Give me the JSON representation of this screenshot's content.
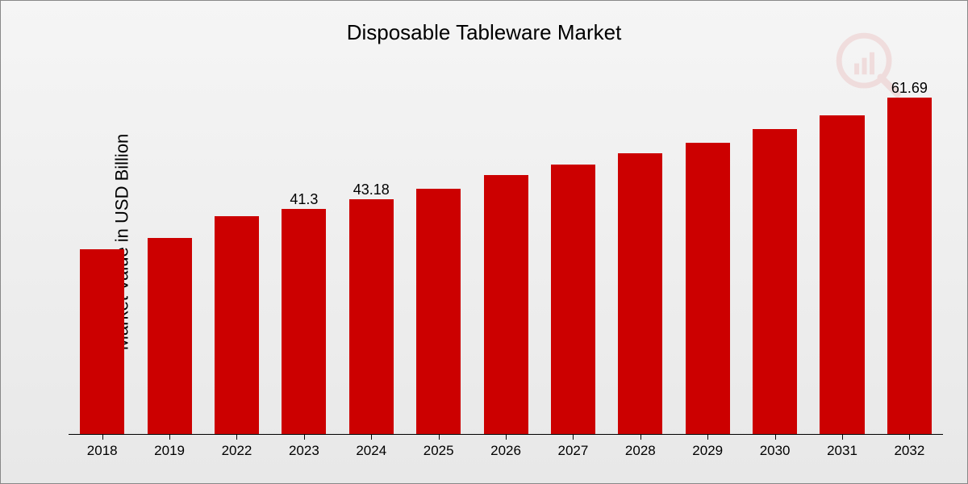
{
  "chart": {
    "type": "bar",
    "title": "Disposable Tableware Market",
    "title_fontsize": 26,
    "ylabel": "Market Value in USD Billion",
    "ylabel_fontsize": 22,
    "background_gradient_top": "#f5f5f5",
    "background_gradient_bottom": "#e8e8e8",
    "border_color": "#888888",
    "bar_color": "#cc0000",
    "axis_color": "#000000",
    "text_color": "#000000",
    "bar_width_ratio": 0.66,
    "ylim": [
      0,
      65
    ],
    "categories": [
      "2018",
      "2019",
      "2022",
      "2023",
      "2024",
      "2025",
      "2026",
      "2027",
      "2028",
      "2029",
      "2030",
      "2031",
      "2032"
    ],
    "values": [
      34.0,
      36.0,
      40.0,
      41.3,
      43.18,
      45.0,
      47.5,
      49.5,
      51.5,
      53.5,
      56.0,
      58.5,
      61.69
    ],
    "value_labels": [
      "",
      "",
      "",
      "41.3",
      "43.18",
      "",
      "",
      "",
      "",
      "",
      "",
      "",
      "61.69"
    ],
    "value_label_fontsize": 18,
    "xtick_fontsize": 17,
    "watermark_color": "#cc0000",
    "watermark_opacity": 0.09
  }
}
